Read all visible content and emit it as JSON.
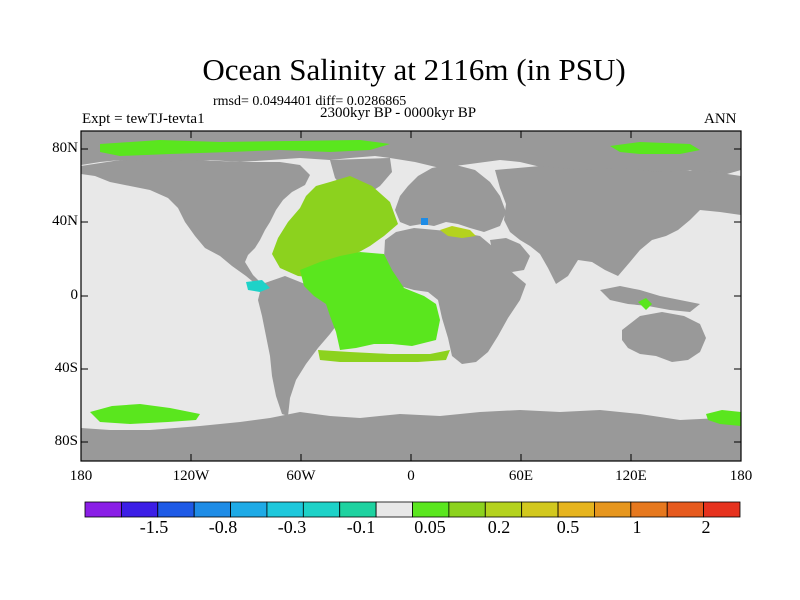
{
  "map": {
    "title": "Ocean Salinity at 2116m (in PSU)",
    "stats": "rmsd= 0.0494401 diff= 0.0286865",
    "experiment": "Expt = tewTJ-tevta1",
    "period": "2300kyr BP - 0000kyr BP",
    "season": "ANN",
    "lat_labels": [
      "80N",
      "40N",
      "0",
      "40S",
      "80S"
    ],
    "lon_labels": [
      "180",
      "120W",
      "60W",
      "0",
      "60E",
      "120E",
      "180"
    ],
    "land_color": "#999999",
    "background_ocean_color": "#e8e8e8"
  },
  "colorbar": {
    "colors": [
      "#8a1ee6",
      "#3c1ee6",
      "#1e5ae6",
      "#1e8ce6",
      "#1eaae6",
      "#1ec8dc",
      "#1ed2c8",
      "#1ed2a0",
      "#e8e8e8",
      "#5ae61e",
      "#8cd21e",
      "#b4d21e",
      "#d2c81e",
      "#e6b41e",
      "#e6961e",
      "#e6781e",
      "#e65a1e",
      "#e6321e"
    ],
    "labels": [
      "-1.5",
      "-0.8",
      "-0.3",
      "-0.1",
      "0.05",
      "0.2",
      "0.5",
      "1",
      "2"
    ]
  }
}
